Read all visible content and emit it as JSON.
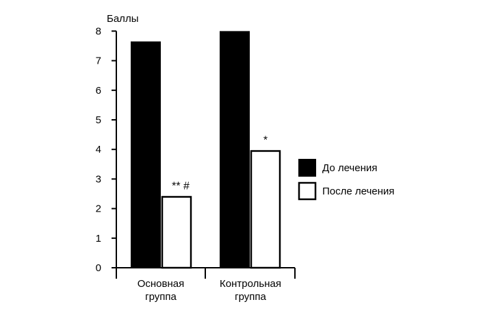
{
  "chart_data": {
    "type": "bar",
    "ylabel": "Баллы",
    "ylim": [
      0,
      8
    ],
    "yticks": [
      0,
      1,
      2,
      3,
      4,
      5,
      6,
      7,
      8
    ],
    "categories": [
      [
        "Основная",
        "группа"
      ],
      [
        "Контрольная",
        "группа"
      ]
    ],
    "series": [
      {
        "name": "До лечения",
        "values": [
          7.65,
          8.0
        ],
        "color": "#000000",
        "fill": "solid"
      },
      {
        "name": "После лечения",
        "values": [
          2.42,
          3.97
        ],
        "color": "#000000",
        "fill": "#ffffff"
      }
    ],
    "annotations": [
      {
        "category_index": 0,
        "series_index": 1,
        "text": "** #"
      },
      {
        "category_index": 1,
        "series_index": 1,
        "text": "*"
      }
    ],
    "legend_position": "right",
    "grid": false
  }
}
